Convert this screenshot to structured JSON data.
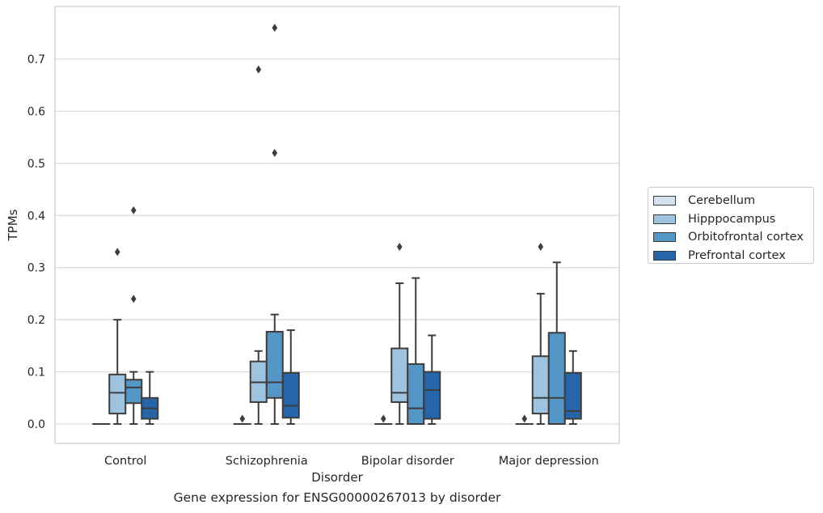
{
  "chart_data": {
    "type": "box",
    "xlabel": "Disorder",
    "ylabel": "TPMs",
    "caption": "Gene expression for ENSG00000267013 by disorder",
    "categories": [
      "Control",
      "Schizophrenia",
      "Bipolar disorder",
      "Major depression"
    ],
    "ylim": [
      -0.037,
      0.8
    ],
    "yticks": [
      "0.0",
      "0.1",
      "0.2",
      "0.3",
      "0.4",
      "0.5",
      "0.6",
      "0.7"
    ],
    "grid": "horizontal",
    "legend_position": "right",
    "series": [
      {
        "name": "Cerebellum",
        "color": "#d4e3f1",
        "boxes": [
          {
            "whislo": 0,
            "q1": 0,
            "med": 0,
            "q3": 0,
            "whishi": 0,
            "fliers": []
          },
          {
            "whislo": 0,
            "q1": 0,
            "med": 0,
            "q3": 0,
            "whishi": 0,
            "fliers": [
              0.01
            ]
          },
          {
            "whislo": 0,
            "q1": 0,
            "med": 0,
            "q3": 0,
            "whishi": 0,
            "fliers": [
              0.01
            ]
          },
          {
            "whislo": 0,
            "q1": 0,
            "med": 0,
            "q3": 0,
            "whishi": 0,
            "fliers": [
              0.01
            ]
          }
        ]
      },
      {
        "name": "Hipppocampus",
        "color": "#9dc3df",
        "boxes": [
          {
            "whislo": 0,
            "q1": 0.02,
            "med": 0.06,
            "q3": 0.095,
            "whishi": 0.2,
            "fliers": [
              0.33
            ]
          },
          {
            "whislo": 0,
            "q1": 0.042,
            "med": 0.08,
            "q3": 0.12,
            "whishi": 0.14,
            "fliers": [
              0.68
            ]
          },
          {
            "whislo": 0,
            "q1": 0.042,
            "med": 0.06,
            "q3": 0.145,
            "whishi": 0.27,
            "fliers": [
              0.34
            ]
          },
          {
            "whislo": 0,
            "q1": 0.02,
            "med": 0.05,
            "q3": 0.13,
            "whishi": 0.25,
            "fliers": [
              0.34
            ]
          }
        ]
      },
      {
        "name": "Orbitofrontal cortex",
        "color": "#5497c6",
        "boxes": [
          {
            "whislo": 0,
            "q1": 0.04,
            "med": 0.07,
            "q3": 0.085,
            "whishi": 0.1,
            "fliers": [
              0.24,
              0.41
            ]
          },
          {
            "whislo": 0,
            "q1": 0.05,
            "med": 0.08,
            "q3": 0.177,
            "whishi": 0.21,
            "fliers": [
              0.52,
              0.76
            ]
          },
          {
            "whislo": 0,
            "q1": 0,
            "med": 0.03,
            "q3": 0.115,
            "whishi": 0.28,
            "fliers": []
          },
          {
            "whislo": 0,
            "q1": 0,
            "med": 0.05,
            "q3": 0.175,
            "whishi": 0.31,
            "fliers": []
          }
        ]
      },
      {
        "name": "Prefrontal cortex",
        "color": "#2565a8",
        "boxes": [
          {
            "whislo": 0,
            "q1": 0.01,
            "med": 0.03,
            "q3": 0.05,
            "whishi": 0.1,
            "fliers": []
          },
          {
            "whislo": 0,
            "q1": 0.012,
            "med": 0.035,
            "q3": 0.098,
            "whishi": 0.18,
            "fliers": []
          },
          {
            "whislo": 0,
            "q1": 0.01,
            "med": 0.065,
            "q3": 0.1,
            "whishi": 0.17,
            "fliers": []
          },
          {
            "whislo": 0,
            "q1": 0.01,
            "med": 0.025,
            "q3": 0.098,
            "whishi": 0.14,
            "fliers": []
          }
        ]
      }
    ]
  }
}
